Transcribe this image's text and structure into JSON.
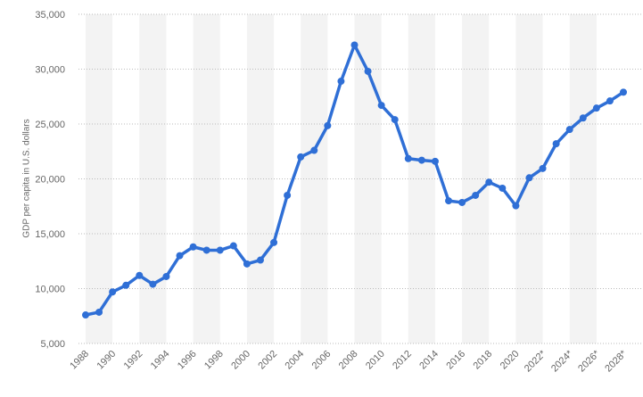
{
  "chart_data": {
    "type": "line",
    "y_axis_label": "GDP per capita in U.S. dollars",
    "categories": [
      "1988",
      null,
      "1990",
      null,
      "1992",
      null,
      "1994",
      null,
      "1996",
      null,
      "1998",
      null,
      "2000",
      null,
      "2002",
      null,
      "2004",
      null,
      "2006",
      null,
      "2008",
      null,
      "2010",
      null,
      "2012",
      null,
      "2014",
      null,
      "2016",
      null,
      "2018",
      null,
      "2020",
      null,
      "2022*",
      null,
      "2024*",
      null,
      "2026*",
      null,
      "2028*"
    ],
    "series": [
      {
        "name": "GDP per capita",
        "color": "#2f6fd6",
        "values": [
          7600,
          7850,
          9700,
          10300,
          11200,
          10400,
          11100,
          13000,
          13800,
          13500,
          13500,
          13900,
          12250,
          12600,
          14200,
          18500,
          22000,
          22600,
          24850,
          28900,
          32200,
          29800,
          26700,
          25400,
          21850,
          21700,
          21600,
          18000,
          17850,
          18500,
          19700,
          19150,
          17550,
          20100,
          20950,
          23200,
          24500,
          25550,
          26450,
          27100,
          27900
        ]
      }
    ],
    "ylim": [
      5000,
      35000
    ],
    "yticks": [
      {
        "value": 5000,
        "label": "5,000"
      },
      {
        "value": 10000,
        "label": "10,000"
      },
      {
        "value": 15000,
        "label": "15,000"
      },
      {
        "value": 20000,
        "label": "20,000"
      },
      {
        "value": 25000,
        "label": "25,000"
      },
      {
        "value": 30000,
        "label": "30,000"
      },
      {
        "value": 35000,
        "label": "35,000"
      }
    ],
    "grid": true
  }
}
